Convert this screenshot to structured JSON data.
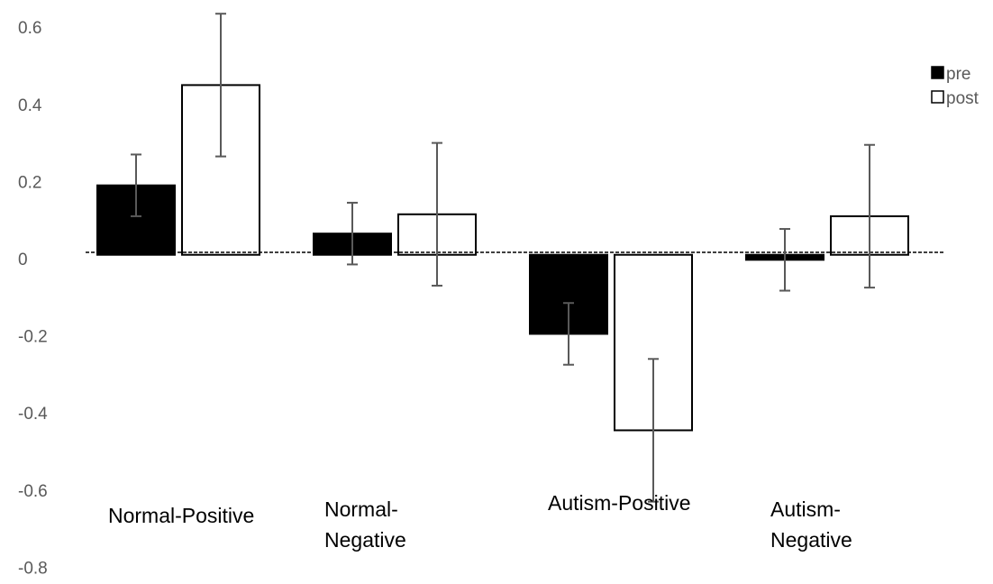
{
  "chart_data": {
    "type": "bar",
    "categories": [
      "Normal-Positive",
      "Normal-Negative",
      "Autism-Positive",
      "Autism-Negative"
    ],
    "category_label_lines": [
      [
        "Normal-Positive"
      ],
      [
        "Normal-",
        "Negative"
      ],
      [
        "Autism-Positive"
      ],
      [
        "Autism-",
        "Negative"
      ]
    ],
    "series": [
      {
        "name": "pre",
        "values": [
          0.19,
          0.065,
          -0.195,
          -0.003
        ],
        "errors": [
          0.08,
          0.08,
          0.08,
          0.08
        ],
        "fill": "#000000"
      },
      {
        "name": "post",
        "values": [
          0.45,
          0.115,
          -0.445,
          0.11
        ],
        "errors": [
          0.185,
          0.185,
          0.185,
          0.185
        ],
        "fill": "#ffffff"
      }
    ],
    "yticks": [
      "0.6",
      "0.4",
      "0.2",
      "0",
      "-0.2",
      "-0.4",
      "-0.6",
      "-0.8"
    ],
    "ytick_values": [
      0.6,
      0.4,
      0.2,
      0,
      -0.2,
      -0.4,
      -0.6,
      -0.8
    ],
    "ylim": [
      -0.8,
      0.6
    ],
    "baseline": 0.01,
    "legend_position": "top-right",
    "colors": {
      "bar_stroke": "#000000",
      "error_bar": "#595959",
      "tick_text": "#595959"
    }
  }
}
